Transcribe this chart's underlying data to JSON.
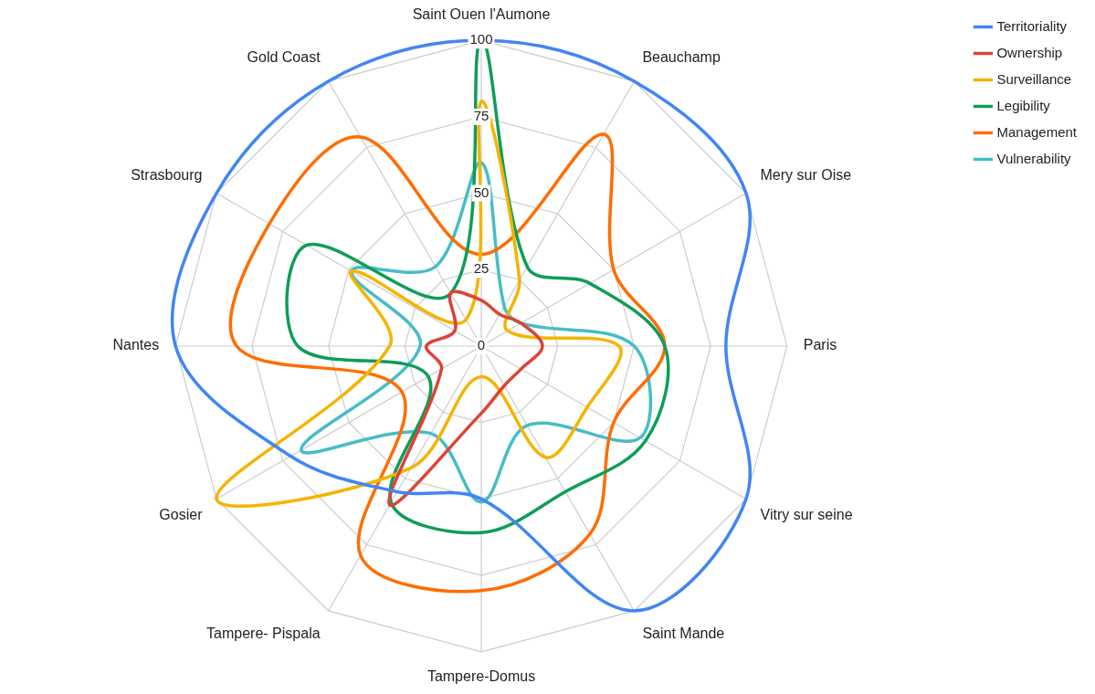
{
  "chart_data": {
    "type": "radar",
    "categories": [
      "Saint Ouen l'Aumone",
      "Beauchamp",
      "Mery sur Oise",
      "Paris",
      "Vitry sur seine",
      "Saint Mande",
      "Tampere-Domus",
      "Tampere- Pispala",
      "Gosier",
      "Nantes",
      "Strasbourg",
      "Gold Coast"
    ],
    "series": [
      {
        "name": "Territoriality",
        "color": "#4285f4",
        "values": [
          100,
          100,
          100,
          80,
          100,
          100,
          50,
          55,
          72,
          100,
          100,
          100
        ]
      },
      {
        "name": "Ownership",
        "color": "#db4437",
        "values": [
          15,
          12,
          15,
          20,
          15,
          15,
          22,
          60,
          15,
          18,
          10,
          20
        ]
      },
      {
        "name": "Surveillance",
        "color": "#f4b400",
        "values": [
          80,
          25,
          10,
          45,
          40,
          42,
          10,
          46,
          100,
          30,
          49,
          10
        ]
      },
      {
        "name": "Legibility",
        "color": "#0f9d58",
        "values": [
          100,
          30,
          41,
          60,
          62,
          55,
          61,
          59,
          20,
          60,
          66,
          20
        ]
      },
      {
        "name": "Management",
        "color": "#ff6d01",
        "values": [
          30,
          80,
          50,
          60,
          50,
          71,
          80,
          79,
          30,
          80,
          80,
          79
        ]
      },
      {
        "name": "Vulnerability",
        "color": "#46bdc6",
        "values": [
          60,
          15,
          15,
          50,
          60,
          30,
          51,
          33,
          68,
          20,
          49,
          30
        ]
      }
    ],
    "ylim": [
      0,
      100
    ],
    "yticks": [
      0,
      25,
      50,
      75,
      100
    ],
    "grid": true,
    "legend": "top right",
    "line_style": "solid",
    "marker": "none"
  }
}
